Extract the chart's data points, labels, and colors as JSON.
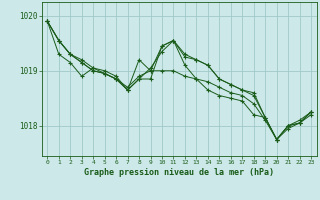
{
  "background_color": "#cce8e8",
  "grid_color": "#a0c8c8",
  "line_color": "#1a5c1a",
  "title": "Graphe pression niveau de la mer (hPa)",
  "xlim": [
    -0.5,
    23.5
  ],
  "ylim": [
    1017.45,
    1020.25
  ],
  "yticks": [
    1018,
    1019,
    1020
  ],
  "xticks": [
    0,
    1,
    2,
    3,
    4,
    5,
    6,
    7,
    8,
    9,
    10,
    11,
    12,
    13,
    14,
    15,
    16,
    17,
    18,
    19,
    20,
    21,
    22,
    23
  ],
  "series": [
    [
      1019.9,
      1019.55,
      1019.3,
      1019.15,
      1019.0,
      1018.95,
      1018.85,
      1018.7,
      1018.9,
      1019.0,
      1019.0,
      1019.0,
      1018.9,
      1018.85,
      1018.8,
      1018.7,
      1018.6,
      1018.55,
      1018.4,
      1018.1,
      1017.75,
      1017.95,
      1018.05,
      1018.2
    ],
    [
      1019.9,
      1019.55,
      1019.3,
      1019.2,
      1019.05,
      1019.0,
      1018.9,
      1018.65,
      1018.85,
      1019.05,
      1019.35,
      1019.55,
      1019.3,
      1019.2,
      1019.1,
      1018.85,
      1018.75,
      1018.65,
      1018.6,
      1018.15,
      1017.75,
      1018.0,
      1018.1,
      1018.25
    ],
    [
      1019.9,
      1019.55,
      1019.3,
      1019.15,
      1019.0,
      1018.95,
      1018.85,
      1018.65,
      1019.2,
      1019.0,
      1019.45,
      1019.55,
      1019.25,
      1019.2,
      1019.1,
      1018.85,
      1018.75,
      1018.65,
      1018.55,
      1018.15,
      1017.75,
      1018.0,
      1018.05,
      1018.25
    ],
    [
      1019.9,
      1019.3,
      1019.15,
      1018.9,
      1019.05,
      1018.95,
      1018.85,
      1018.65,
      1018.85,
      1018.85,
      1019.45,
      1019.55,
      1019.1,
      1018.85,
      1018.65,
      1018.55,
      1018.5,
      1018.45,
      1018.2,
      1018.15,
      1017.75,
      1018.0,
      1018.05,
      1018.25
    ]
  ]
}
